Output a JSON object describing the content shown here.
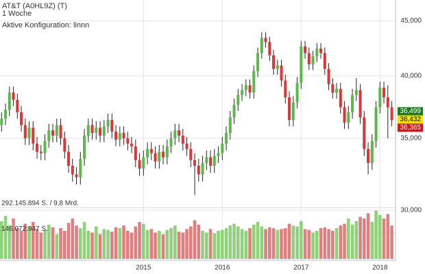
{
  "chart_data": {
    "type": "candlestick",
    "title": "AT&T (A0HL9Z) (T)",
    "subtitle": "1 Woche",
    "annotation": "Aktive Konfiguration: linnn",
    "log_scale": true,
    "grid": true,
    "up_color": "#5cb84a",
    "down_color": "#d9383a",
    "volume_up_color": "#8fd27a",
    "volume_down_color": "#e07f7f",
    "x": [
      2013.2,
      2013.25,
      2013.3,
      2013.35,
      2013.4,
      2013.45,
      2013.5,
      2013.55,
      2013.6,
      2013.65,
      2013.7,
      2013.75,
      2013.8,
      2013.85,
      2013.9,
      2013.95,
      2014,
      2014.05,
      2014.1,
      2014.15,
      2014.2,
      2014.25,
      2014.3,
      2014.35,
      2014.4,
      2014.45,
      2014.5,
      2014.55,
      2014.6,
      2014.65,
      2014.7,
      2014.75,
      2014.8,
      2014.85,
      2014.9,
      2014.95,
      2015,
      2015.05,
      2015.1,
      2015.15,
      2015.2,
      2015.25,
      2015.3,
      2015.35,
      2015.4,
      2015.45,
      2015.5,
      2015.55,
      2015.6,
      2015.65,
      2015.7,
      2015.75,
      2015.8,
      2015.85,
      2015.9,
      2015.95,
      2016,
      2016.05,
      2016.1,
      2016.15,
      2016.2,
      2016.25,
      2016.3,
      2016.35,
      2016.4,
      2016.45,
      2016.5,
      2016.55,
      2016.6,
      2016.65,
      2016.7,
      2016.75,
      2016.8,
      2016.85,
      2016.9,
      2016.95,
      2017,
      2017.05,
      2017.1,
      2017.15,
      2017.2,
      2017.25,
      2017.3,
      2017.35,
      2017.4,
      2017.45,
      2017.5,
      2017.55,
      2017.6,
      2017.65,
      2017.7,
      2017.75,
      2017.8,
      2017.85,
      2017.9,
      2017.95,
      2018,
      2018.05,
      2018.1,
      2018.15
    ],
    "open": [
      36.0,
      36.5,
      37.2,
      38.6,
      38.0,
      37.0,
      36.0,
      35.0,
      35.8,
      34.6,
      34.0,
      33.9,
      34.8,
      35.6,
      35.2,
      36.0,
      35.0,
      34.0,
      33.0,
      32.4,
      32.2,
      33.5,
      35.2,
      36.0,
      35.4,
      35.8,
      35.2,
      35.9,
      36.4,
      35.5,
      34.9,
      35.4,
      35.0,
      34.6,
      34.4,
      33.4,
      32.8,
      33.6,
      34.2,
      33.9,
      33.3,
      34.0,
      33.6,
      34.4,
      35.0,
      35.6,
      35.2,
      34.6,
      34.2,
      33.4,
      33.0,
      32.4,
      33.2,
      33.6,
      33.0,
      33.7,
      33.9,
      34.6,
      35.4,
      36.6,
      37.6,
      38.4,
      38.8,
      39.2,
      38.6,
      40.4,
      42.0,
      43.4,
      43.0,
      41.8,
      40.6,
      40.9,
      39.6,
      38.2,
      36.4,
      37.8,
      39.4,
      42.6,
      42.0,
      41.0,
      41.7,
      42.4,
      42.0,
      40.6,
      39.3,
      38.6,
      38.9,
      37.4,
      36.2,
      37.0,
      38.4,
      38.8,
      36.6,
      34.2,
      33.2,
      34.8,
      37.4,
      39.0,
      38.2,
      37.4
    ],
    "high": [
      37.0,
      37.7,
      39.1,
      39.1,
      38.5,
      37.5,
      36.5,
      36.3,
      36.3,
      35.1,
      34.5,
      35.3,
      36.1,
      36.1,
      36.5,
      36.5,
      35.5,
      34.5,
      33.5,
      32.9,
      34.0,
      35.7,
      36.5,
      36.5,
      36.3,
      36.3,
      36.4,
      36.9,
      36.9,
      36.0,
      35.9,
      35.9,
      35.5,
      35.1,
      34.9,
      33.9,
      34.1,
      34.7,
      34.7,
      34.4,
      34.5,
      34.5,
      34.9,
      35.5,
      36.1,
      36.1,
      35.7,
      35.1,
      34.7,
      33.9,
      33.5,
      33.7,
      34.1,
      34.1,
      34.2,
      34.4,
      35.1,
      35.9,
      37.1,
      38.1,
      38.9,
      39.3,
      39.7,
      39.7,
      40.9,
      42.5,
      43.9,
      43.9,
      43.5,
      42.3,
      41.4,
      41.4,
      40.1,
      38.7,
      38.3,
      39.9,
      43.1,
      43.1,
      42.5,
      42.2,
      42.9,
      42.9,
      42.5,
      41.1,
      39.8,
      39.4,
      39.4,
      37.9,
      37.5,
      38.9,
      39.8,
      39.3,
      37.1,
      34.7,
      35.3,
      37.9,
      39.5,
      39.5,
      39.2,
      37.9
    ],
    "low": [
      35.5,
      36.0,
      36.7,
      37.5,
      36.5,
      35.5,
      34.5,
      34.5,
      34.1,
      33.5,
      33.4,
      33.4,
      34.3,
      34.7,
      34.7,
      34.5,
      33.5,
      32.5,
      31.9,
      31.7,
      31.7,
      33.0,
      34.7,
      34.9,
      34.9,
      34.7,
      34.7,
      35.4,
      35.0,
      34.4,
      34.4,
      34.5,
      34.1,
      33.9,
      32.9,
      32.3,
      32.3,
      33.1,
      33.4,
      32.8,
      32.8,
      33.1,
      33.1,
      33.9,
      34.5,
      34.7,
      34.1,
      33.7,
      32.9,
      31.0,
      31.9,
      31.9,
      32.7,
      32.5,
      32.5,
      33.2,
      33.4,
      34.1,
      34.9,
      36.1,
      37.1,
      37.9,
      38.3,
      38.1,
      38.1,
      39.9,
      41.5,
      42.5,
      41.3,
      40.1,
      40.1,
      39.1,
      37.7,
      35.9,
      35.9,
      37.3,
      38.9,
      41.5,
      40.5,
      40.5,
      41.2,
      41.5,
      40.1,
      38.8,
      38.1,
      38.1,
      36.9,
      35.7,
      35.7,
      36.5,
      37.9,
      36.1,
      33.7,
      32.4,
      32.7,
      34.3,
      36.9,
      37.7,
      35.0,
      35.9
    ],
    "close": [
      36.5,
      37.2,
      38.6,
      38.0,
      37.0,
      36.0,
      35.0,
      35.8,
      34.6,
      34.0,
      33.9,
      34.8,
      35.6,
      35.2,
      36.0,
      35.0,
      34.0,
      33.0,
      32.4,
      32.2,
      33.5,
      35.2,
      36.0,
      35.4,
      35.8,
      35.2,
      35.9,
      36.4,
      35.5,
      34.9,
      35.4,
      35.0,
      34.6,
      34.4,
      33.4,
      32.8,
      33.6,
      34.2,
      33.9,
      33.3,
      34.0,
      33.6,
      34.4,
      35.0,
      35.6,
      35.2,
      34.6,
      34.2,
      33.4,
      33.0,
      32.4,
      33.2,
      33.6,
      33.0,
      33.7,
      33.9,
      34.6,
      35.4,
      36.6,
      37.6,
      38.4,
      38.8,
      39.2,
      38.6,
      40.4,
      42.0,
      43.4,
      43.0,
      41.8,
      40.6,
      40.9,
      39.6,
      38.2,
      36.4,
      37.8,
      39.4,
      42.6,
      42.0,
      41.0,
      41.7,
      42.4,
      42.0,
      40.6,
      39.3,
      38.6,
      38.9,
      37.4,
      36.2,
      37.0,
      38.4,
      38.8,
      36.6,
      34.2,
      33.2,
      34.8,
      37.4,
      39.0,
      38.2,
      37.4,
      36.4
    ],
    "volume": [
      215000000,
      245000000,
      190000000,
      230000000,
      175000000,
      160000000,
      200000000,
      185000000,
      210000000,
      170000000,
      150000000,
      165000000,
      195000000,
      180000000,
      140000000,
      175000000,
      160000000,
      205000000,
      230000000,
      190000000,
      175000000,
      210000000,
      160000000,
      150000000,
      185000000,
      140000000,
      170000000,
      165000000,
      155000000,
      180000000,
      175000000,
      190000000,
      160000000,
      150000000,
      185000000,
      210000000,
      200000000,
      165000000,
      170000000,
      150000000,
      160000000,
      140000000,
      165000000,
      175000000,
      190000000,
      155000000,
      150000000,
      170000000,
      185000000,
      220000000,
      195000000,
      160000000,
      150000000,
      170000000,
      145000000,
      160000000,
      165000000,
      175000000,
      190000000,
      200000000,
      185000000,
      170000000,
      160000000,
      175000000,
      195000000,
      210000000,
      185000000,
      170000000,
      180000000,
      175000000,
      165000000,
      170000000,
      175000000,
      200000000,
      190000000,
      185000000,
      215000000,
      170000000,
      165000000,
      150000000,
      160000000,
      175000000,
      180000000,
      170000000,
      160000000,
      175000000,
      190000000,
      200000000,
      230000000,
      195000000,
      215000000,
      240000000,
      230000000,
      260000000,
      210000000,
      275000000,
      250000000,
      230000000,
      255000000,
      190000000
    ],
    "xlim": [
      2013.18,
      2018.18
    ],
    "xticks": [
      2015,
      2016,
      2017,
      2018
    ],
    "ylim": [
      30,
      46.5
    ],
    "yticks": [
      {
        "value": 30,
        "label": "30,000"
      },
      {
        "value": 35,
        "label": "35,000"
      },
      {
        "value": 40,
        "label": "40,000"
      },
      {
        "value": 45,
        "label": "45,000"
      }
    ],
    "volume_lim": [
      0,
      292145894
    ],
    "volume_ticks": [
      {
        "value": 146072947,
        "label": "146.072.947 S."
      },
      {
        "value": 292145894,
        "label": "292.145.894 S. / 9,8 Mrd."
      }
    ],
    "price_markers": [
      {
        "value": 36.499,
        "label": "36,499",
        "color": "#1e7a1e"
      },
      {
        "value": 36.432,
        "label": "36,432",
        "color": "#f2e600"
      },
      {
        "value": 36.365,
        "label": "36,365",
        "color": "#d01818"
      }
    ]
  }
}
